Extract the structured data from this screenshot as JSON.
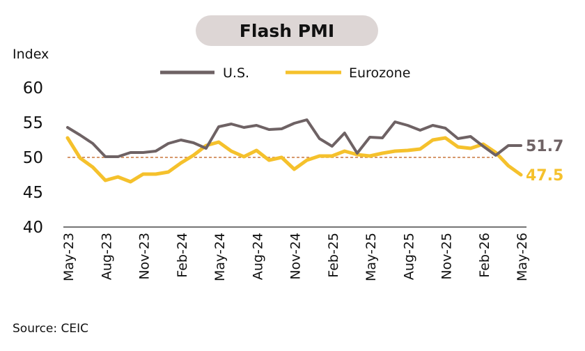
{
  "chart_data": {
    "type": "line",
    "title": "Flash PMI",
    "ylabel": "Index",
    "source": "Source: CEIC",
    "ylim": [
      40,
      60
    ],
    "yticks": [
      40,
      45,
      50,
      55,
      60
    ],
    "reference_line": 50,
    "legend_position": "top",
    "x_tick_labels": [
      "May-23",
      "Aug-23",
      "Nov-23",
      "Feb-24",
      "May-24",
      "Aug-24",
      "Nov-24",
      "Feb-25",
      "May-25",
      "Aug-25",
      "Nov-25",
      "Feb-26",
      "May-26"
    ],
    "x": [
      "May-23",
      "Jun-23",
      "Jul-23",
      "Aug-23",
      "Sep-23",
      "Oct-23",
      "Nov-23",
      "Dec-23",
      "Jan-24",
      "Feb-24",
      "Mar-24",
      "Apr-24",
      "May-24",
      "Jun-24",
      "Jul-24",
      "Aug-24",
      "Sep-24",
      "Oct-24",
      "Nov-24",
      "Dec-24",
      "Jan-25",
      "Feb-25",
      "Mar-25",
      "Apr-25",
      "May-25",
      "Jun-25",
      "Jul-25",
      "Aug-25",
      "Sep-25",
      "Oct-25",
      "Nov-25",
      "Dec-25",
      "Jan-26",
      "Feb-26",
      "Mar-26",
      "Apr-26",
      "May-26"
    ],
    "series": [
      {
        "name": "U.S.",
        "color": "#6e6264",
        "end_label": "51.7",
        "values": [
          54.3,
          53.2,
          52.0,
          50.1,
          50.1,
          50.7,
          50.7,
          50.9,
          52.0,
          52.5,
          52.1,
          51.3,
          54.4,
          54.8,
          54.3,
          54.6,
          54.0,
          54.1,
          54.9,
          55.4,
          52.7,
          51.6,
          53.5,
          50.6,
          52.9,
          52.8,
          55.1,
          54.6,
          53.9,
          54.6,
          54.2,
          52.7,
          53.0,
          51.6,
          50.3,
          51.7,
          51.7
        ]
      },
      {
        "name": "Eurozone",
        "color": "#f5c12c",
        "end_label": "47.5",
        "values": [
          52.8,
          49.9,
          48.6,
          46.7,
          47.2,
          46.5,
          47.6,
          47.6,
          47.9,
          49.2,
          50.3,
          51.7,
          52.2,
          50.9,
          50.1,
          51.0,
          49.6,
          50.0,
          48.3,
          49.6,
          50.2,
          50.2,
          50.9,
          50.4,
          50.2,
          50.6,
          50.9,
          51.0,
          51.2,
          52.5,
          52.8,
          51.5,
          51.3,
          51.9,
          50.7,
          48.8,
          47.5
        ]
      }
    ]
  }
}
